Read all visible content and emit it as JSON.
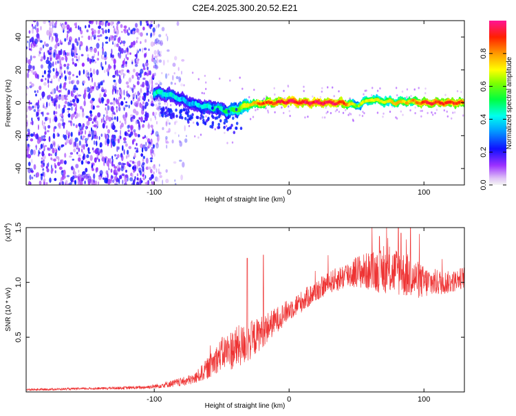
{
  "chart_data": [
    {
      "type": "heatmap",
      "title": "C2E4.2025.300.20.52.E21",
      "xlabel": "Height of straight line (km)",
      "ylabel": "Frequency (Hz)",
      "xlim": [
        -195,
        130
      ],
      "ylim": [
        -50,
        50
      ],
      "x_ticks": [
        -100,
        0,
        100
      ],
      "y_ticks": [
        -40,
        -20,
        0,
        20,
        40
      ],
      "colorbar": {
        "label": "Normalized spectral amplitude",
        "range": [
          0,
          1
        ],
        "ticks": [
          "0.0",
          "0.2",
          "0.4",
          "0.6",
          "0.8"
        ],
        "tick_values": [
          0.0,
          0.2,
          0.4,
          0.6,
          0.8
        ]
      },
      "ridge": {
        "description": "dominant frequency track",
        "x": [
          -95,
          -85,
          -75,
          -65,
          -55,
          -45,
          -38,
          -30,
          -20,
          -10,
          0,
          10,
          20,
          30,
          40,
          50,
          60,
          70,
          80,
          90,
          100,
          110,
          120,
          130
        ],
        "freq": [
          6,
          4,
          0,
          -2,
          -3,
          -5,
          -4,
          -1,
          0,
          0,
          1,
          0,
          0,
          0,
          0,
          -2,
          2,
          1,
          0,
          1,
          0,
          0,
          0,
          0
        ],
        "amplitude": [
          0.45,
          0.4,
          0.35,
          0.4,
          0.45,
          0.5,
          0.6,
          0.7,
          0.85,
          0.9,
          0.95,
          0.95,
          0.95,
          0.95,
          0.9,
          0.6,
          0.7,
          0.7,
          0.75,
          0.75,
          0.9,
          0.9,
          0.9,
          0.85
        ]
      }
    },
    {
      "type": "line",
      "xlabel": "Height of straight line (km)",
      "ylabel": "SNR (10 * v/v)",
      "scale_label": "(x10",
      "scale_exp": "4",
      "scale_close": ")",
      "xlim": [
        -195,
        130
      ],
      "ylim": [
        0,
        1.5
      ],
      "x_ticks": [
        -100,
        0,
        100
      ],
      "y_ticks": [
        0.5,
        1.0,
        1.5
      ],
      "y_tick_labels": [
        "0.5",
        "1.0",
        "1.5"
      ],
      "color": "#ee3333",
      "envelope": {
        "x": [
          -195,
          -150,
          -110,
          -100,
          -90,
          -80,
          -70,
          -60,
          -50,
          -40,
          -30,
          -20,
          -10,
          0,
          10,
          20,
          30,
          40,
          50,
          60,
          70,
          80,
          90,
          100,
          110,
          120,
          130
        ],
        "mean": [
          0.02,
          0.03,
          0.04,
          0.05,
          0.07,
          0.09,
          0.12,
          0.22,
          0.35,
          0.4,
          0.45,
          0.55,
          0.65,
          0.75,
          0.83,
          0.92,
          1.0,
          1.05,
          1.1,
          1.1,
          1.1,
          1.1,
          1.05,
          1.0,
          1.0,
          1.0,
          1.05
        ],
        "noise": [
          0.01,
          0.01,
          0.015,
          0.02,
          0.03,
          0.04,
          0.05,
          0.1,
          0.15,
          0.2,
          0.18,
          0.15,
          0.12,
          0.1,
          0.1,
          0.1,
          0.1,
          0.12,
          0.15,
          0.18,
          0.2,
          0.22,
          0.2,
          0.15,
          0.12,
          0.1,
          0.1
        ]
      },
      "peaks": [
        {
          "x": -31,
          "y": 1.22
        },
        {
          "x": -19,
          "y": 1.25
        },
        {
          "x": 67,
          "y": 1.42
        },
        {
          "x": 81,
          "y": 1.52
        },
        {
          "x": 83,
          "y": 1.45
        },
        {
          "x": 90,
          "y": 1.5
        }
      ]
    }
  ]
}
